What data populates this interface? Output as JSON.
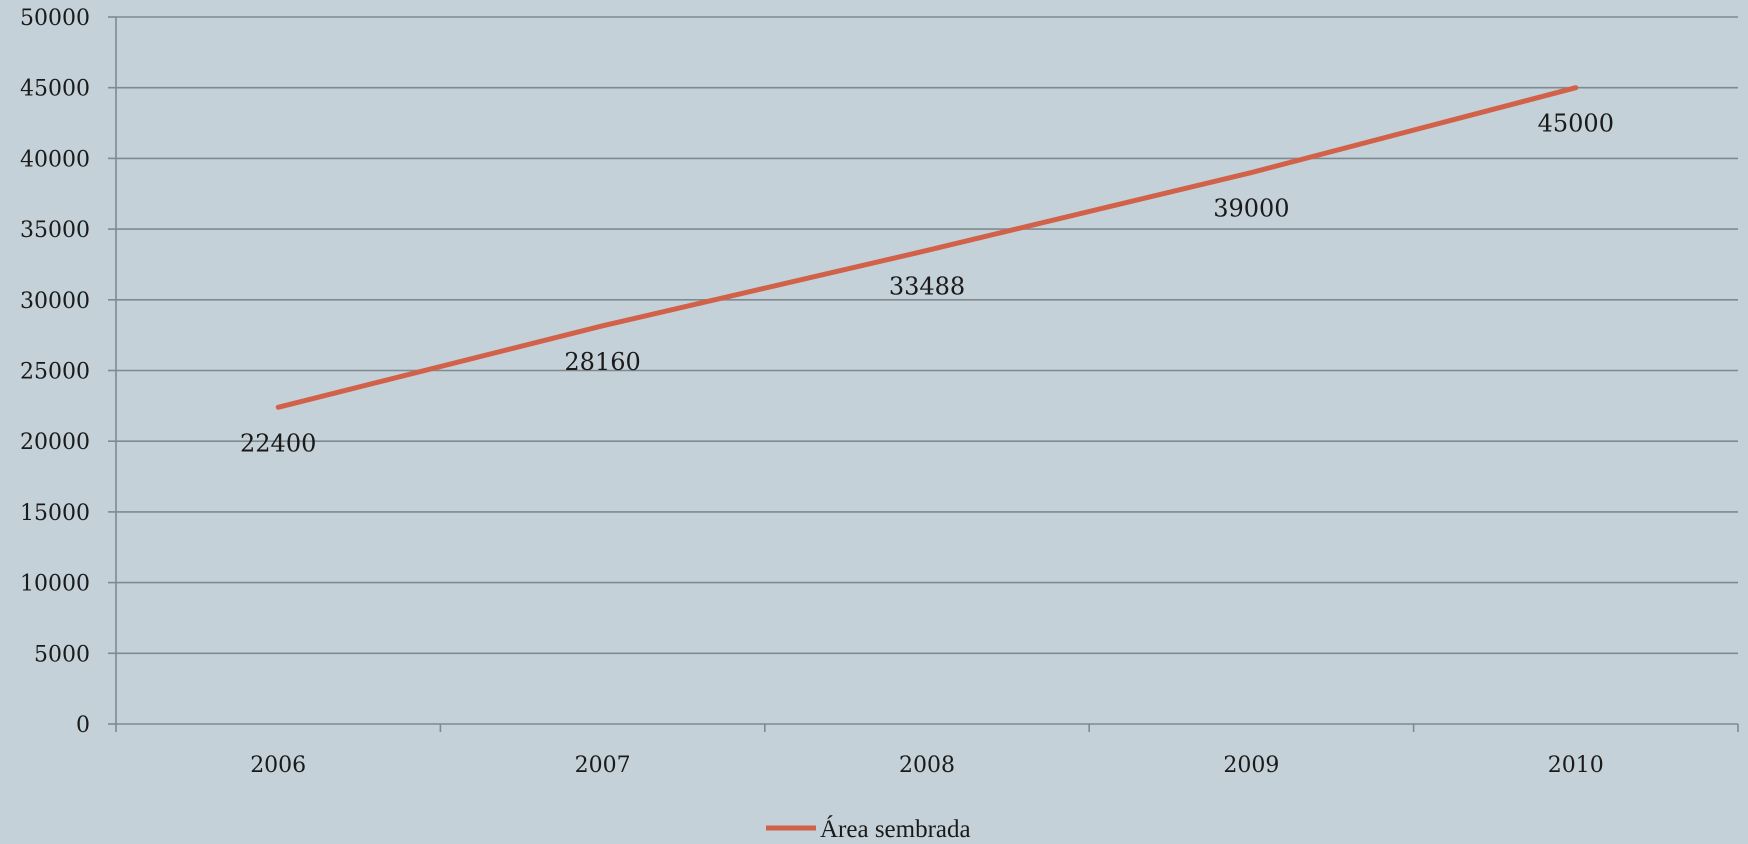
{
  "chart_data": {
    "type": "line",
    "title": "",
    "xlabel": "",
    "ylabel": "",
    "categories": [
      "2006",
      "2007",
      "2008",
      "2009",
      "2010"
    ],
    "series": [
      {
        "name": "Área sembrada",
        "values": [
          22400,
          28160,
          33488,
          39000,
          45000
        ],
        "color": "#d2614a"
      }
    ],
    "ylim": [
      0,
      50000
    ],
    "yticks": [
      "0",
      "5000",
      "10000",
      "15000",
      "20000",
      "25000",
      "30000",
      "35000",
      "40000",
      "45000",
      "50000"
    ],
    "data_labels": [
      "22400",
      "28160",
      "33488",
      "39000",
      "45000"
    ],
    "grid": true,
    "legend": "bottom-center",
    "background_color": "#c5d1d8",
    "gridline_color": "#7f8a90"
  }
}
